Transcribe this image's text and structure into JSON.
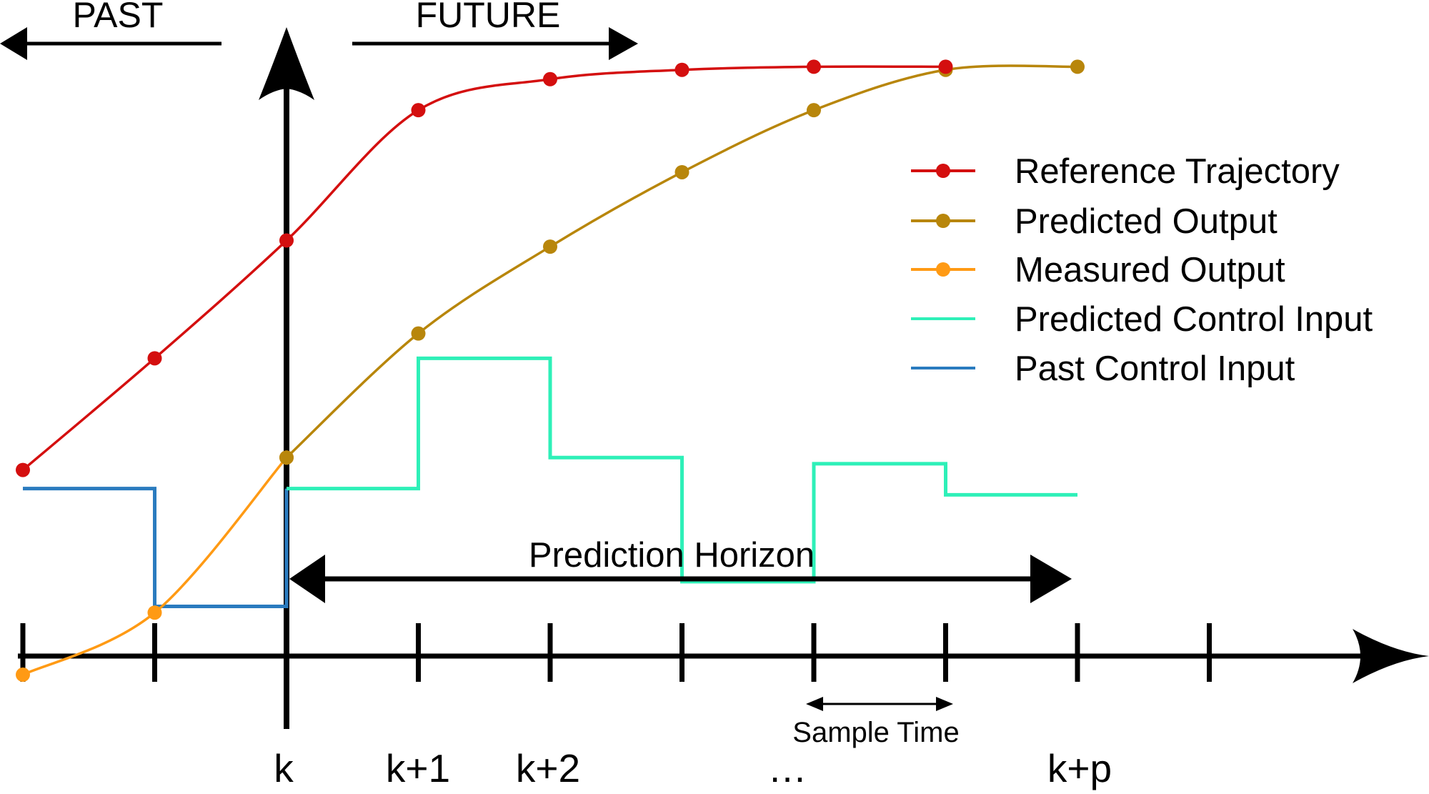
{
  "header": {
    "past_label": "PAST",
    "future_label": "FUTURE"
  },
  "legend": {
    "items": [
      {
        "label": "Reference Trajectory",
        "color": "#d40f0f",
        "marker": "dot"
      },
      {
        "label": "Predicted Output",
        "color": "#b8860b",
        "marker": "dot"
      },
      {
        "label": "Measured Output",
        "color": "#ff9a14",
        "marker": "dot"
      },
      {
        "label": "Predicted Control Input",
        "color": "#2ef0b8",
        "marker": "line"
      },
      {
        "label": "Past Control Input",
        "color": "#2a7bbf",
        "marker": "line"
      }
    ]
  },
  "annotations": {
    "prediction_horizon": "Prediction Horizon",
    "sample_time": "Sample Time"
  },
  "axis": {
    "tick_labels": [
      "k",
      "k+1",
      "k+2",
      "…",
      "k+p"
    ]
  },
  "chart_data": {
    "type": "line",
    "x": [
      -2,
      -1,
      0,
      1,
      2,
      3,
      4,
      5,
      6,
      7
    ],
    "series": [
      {
        "name": "Reference Trajectory",
        "color": "#d40f0f",
        "x": [
          -2,
          -1,
          0,
          1,
          2,
          3,
          4,
          5
        ],
        "values": [
          0.3,
          0.48,
          0.67,
          0.88,
          0.93,
          0.945,
          0.95,
          0.95
        ]
      },
      {
        "name": "Predicted Output",
        "color": "#b8860b",
        "x": [
          0,
          1,
          2,
          3,
          4,
          5,
          6
        ],
        "values": [
          0.32,
          0.52,
          0.66,
          0.78,
          0.88,
          0.945,
          0.95
        ]
      },
      {
        "name": "Measured Output",
        "color": "#ff9a14",
        "x": [
          -2,
          -1,
          0
        ],
        "values": [
          -0.03,
          0.07,
          0.32
        ]
      },
      {
        "name": "Predicted Control Input",
        "color": "#2ef0b8",
        "step": true,
        "x": [
          0,
          1,
          2,
          3,
          4,
          5,
          6
        ],
        "values": [
          0.27,
          0.48,
          0.32,
          0.12,
          0.31,
          0.26,
          0.26
        ]
      },
      {
        "name": "Past Control Input",
        "color": "#2a7bbf",
        "step": true,
        "x": [
          -2,
          -1,
          0
        ],
        "values": [
          0.27,
          0.08,
          0.27
        ]
      }
    ]
  }
}
